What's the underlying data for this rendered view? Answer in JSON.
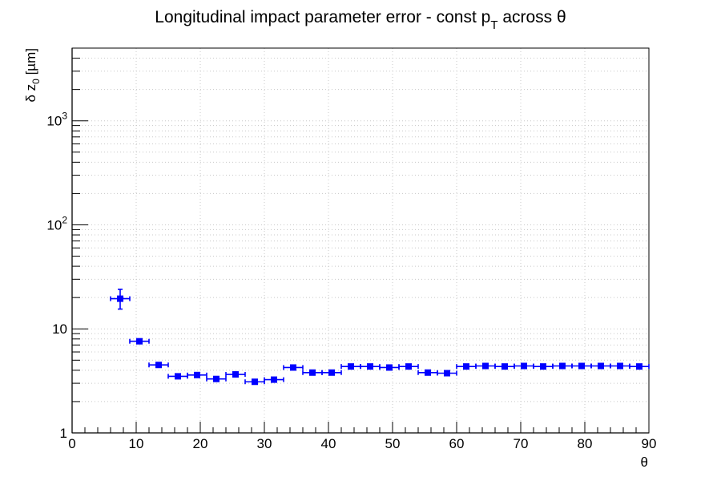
{
  "chart_data": {
    "type": "scatter",
    "title": {
      "main": "Longitudinal impact parameter error - const p",
      "sub": "T",
      "tail": " across θ"
    },
    "xlabel": "θ",
    "ylabel": {
      "symbol": "δ z",
      "sub": "0",
      "unit": " [µm]"
    },
    "xlim": [
      0,
      90
    ],
    "ylim": [
      1,
      5000
    ],
    "yscale": "log",
    "grid": true,
    "x_ticks": [
      "0",
      "10",
      "20",
      "30",
      "40",
      "50",
      "60",
      "70",
      "80",
      "90"
    ],
    "y_ticks": [
      {
        "value": 1,
        "base": "1",
        "exp": ""
      },
      {
        "value": 10,
        "base": "10",
        "exp": ""
      },
      {
        "value": 100,
        "base": "10",
        "exp": "2"
      },
      {
        "value": 1000,
        "base": "10",
        "exp": "3"
      }
    ],
    "series": [
      {
        "color": "#0000ff",
        "marker": "square",
        "x_halfwidth": 1.5,
        "points": [
          {
            "x": 7.5,
            "y": 19.5,
            "err_lo": 4.0,
            "err_hi": 4.5
          },
          {
            "x": 10.5,
            "y": 7.6,
            "err_lo": 0.3,
            "err_hi": 0.3
          },
          {
            "x": 13.5,
            "y": 4.5,
            "err_lo": 0.1,
            "err_hi": 0.1
          },
          {
            "x": 16.5,
            "y": 3.5,
            "err_lo": 0.1,
            "err_hi": 0.1
          },
          {
            "x": 19.5,
            "y": 3.6,
            "err_lo": 0.1,
            "err_hi": 0.1
          },
          {
            "x": 22.5,
            "y": 3.3,
            "err_lo": 0.1,
            "err_hi": 0.1
          },
          {
            "x": 25.5,
            "y": 3.65,
            "err_lo": 0.1,
            "err_hi": 0.1
          },
          {
            "x": 28.5,
            "y": 3.1,
            "err_lo": 0.1,
            "err_hi": 0.1
          },
          {
            "x": 31.5,
            "y": 3.25,
            "err_lo": 0.1,
            "err_hi": 0.1
          },
          {
            "x": 34.5,
            "y": 4.25,
            "err_lo": 0.1,
            "err_hi": 0.1
          },
          {
            "x": 37.5,
            "y": 3.8,
            "err_lo": 0.1,
            "err_hi": 0.1
          },
          {
            "x": 40.5,
            "y": 3.8,
            "err_lo": 0.1,
            "err_hi": 0.1
          },
          {
            "x": 43.5,
            "y": 4.35,
            "err_lo": 0.1,
            "err_hi": 0.1
          },
          {
            "x": 46.5,
            "y": 4.35,
            "err_lo": 0.1,
            "err_hi": 0.1
          },
          {
            "x": 49.5,
            "y": 4.25,
            "err_lo": 0.1,
            "err_hi": 0.1
          },
          {
            "x": 52.5,
            "y": 4.35,
            "err_lo": 0.1,
            "err_hi": 0.1
          },
          {
            "x": 55.5,
            "y": 3.8,
            "err_lo": 0.1,
            "err_hi": 0.1
          },
          {
            "x": 58.5,
            "y": 3.75,
            "err_lo": 0.1,
            "err_hi": 0.1
          },
          {
            "x": 61.5,
            "y": 4.35,
            "err_lo": 0.1,
            "err_hi": 0.1
          },
          {
            "x": 64.5,
            "y": 4.4,
            "err_lo": 0.1,
            "err_hi": 0.1
          },
          {
            "x": 67.5,
            "y": 4.35,
            "err_lo": 0.1,
            "err_hi": 0.1
          },
          {
            "x": 70.5,
            "y": 4.4,
            "err_lo": 0.1,
            "err_hi": 0.1
          },
          {
            "x": 73.5,
            "y": 4.35,
            "err_lo": 0.1,
            "err_hi": 0.1
          },
          {
            "x": 76.5,
            "y": 4.4,
            "err_lo": 0.1,
            "err_hi": 0.1
          },
          {
            "x": 79.5,
            "y": 4.4,
            "err_lo": 0.1,
            "err_hi": 0.1
          },
          {
            "x": 82.5,
            "y": 4.4,
            "err_lo": 0.1,
            "err_hi": 0.1
          },
          {
            "x": 85.5,
            "y": 4.4,
            "err_lo": 0.1,
            "err_hi": 0.1
          },
          {
            "x": 88.5,
            "y": 4.35,
            "err_lo": 0.1,
            "err_hi": 0.1
          }
        ]
      }
    ]
  }
}
